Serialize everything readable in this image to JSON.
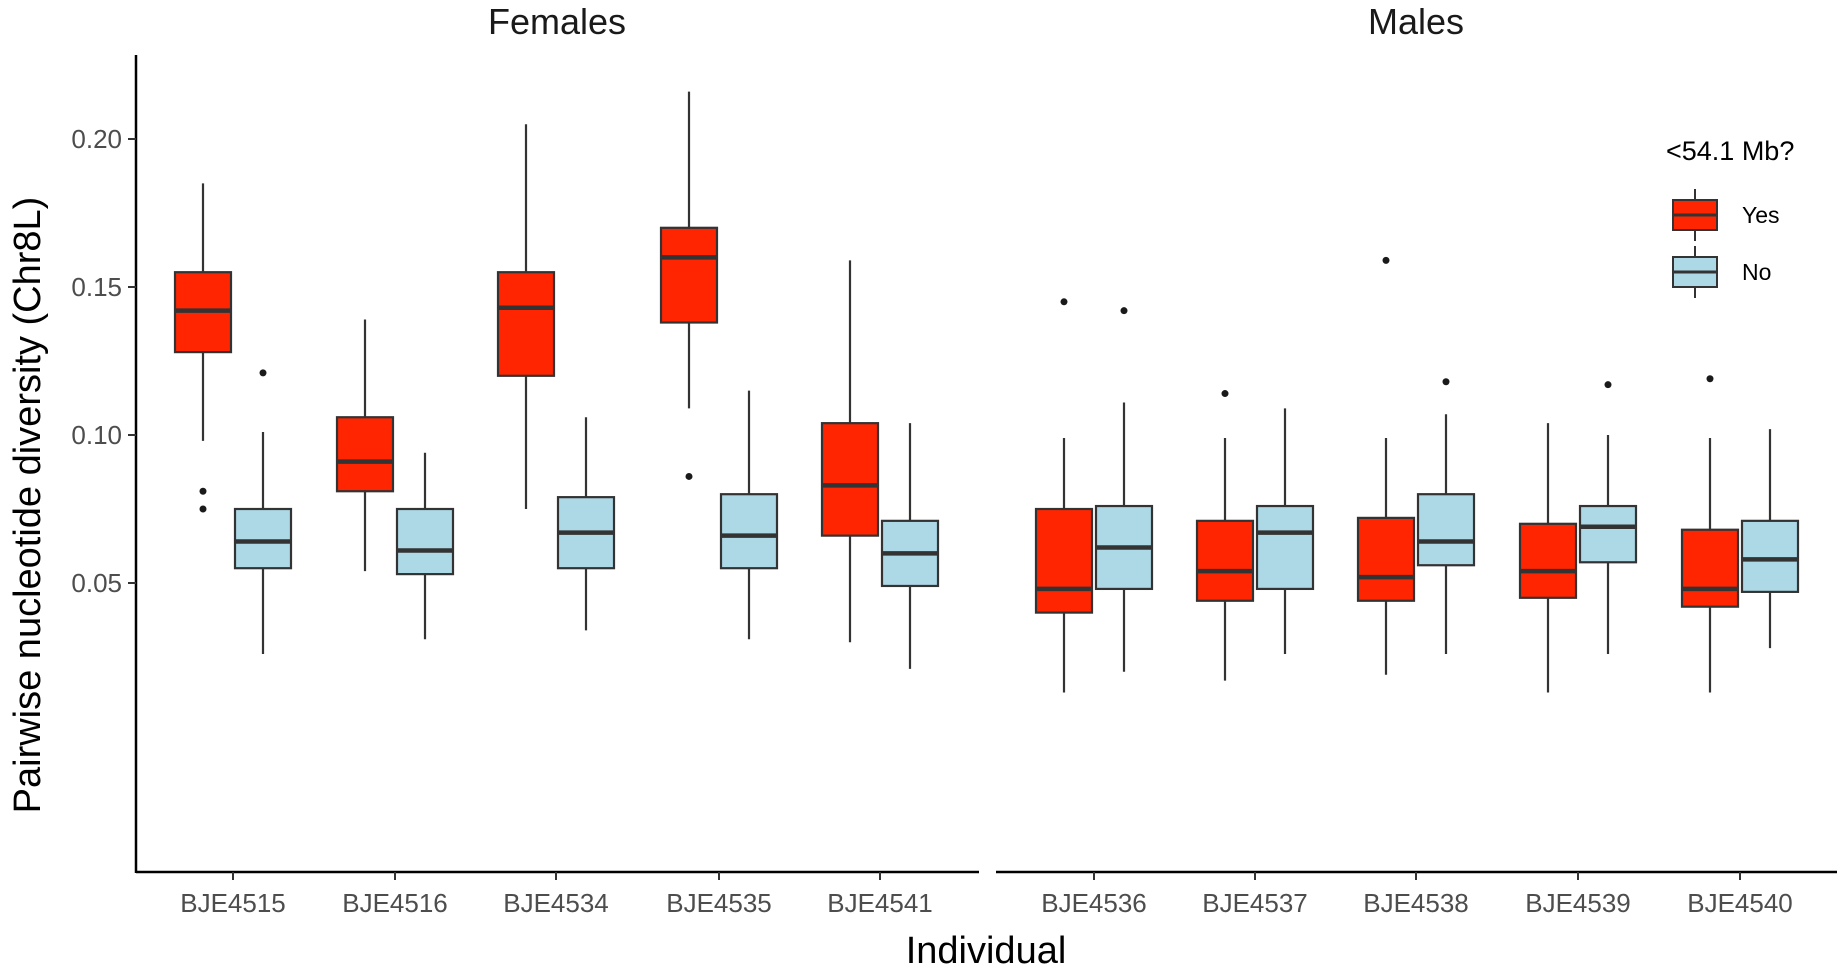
{
  "chart_data": {
    "type": "boxplot",
    "title": "",
    "xlabel": "Individual",
    "ylabel": "Pairwise nucleotide diversity (Chr8L)",
    "ylim": [
      0.0,
      0.225
    ],
    "yticks": [
      0.05,
      0.1,
      0.15,
      0.2
    ],
    "ytick_labels": [
      "0.05",
      "0.10",
      "0.15",
      "0.20"
    ],
    "grid": false,
    "legend": {
      "title": "<54.1 Mb?",
      "position": "top-right",
      "entries": [
        {
          "name": "Yes",
          "color": "#ff2500"
        },
        {
          "name": "No",
          "color": "#add8e6"
        }
      ]
    },
    "facets": [
      {
        "title": "Females",
        "categories": [
          "BJE4515",
          "BJE4516",
          "BJE4534",
          "BJE4535",
          "BJE4541"
        ],
        "series": [
          {
            "name": "Yes",
            "boxes": [
              {
                "min": 0.098,
                "q1": 0.128,
                "median": 0.142,
                "q3": 0.155,
                "max": 0.185,
                "outliers": [
                  0.081,
                  0.075
                ]
              },
              {
                "min": 0.054,
                "q1": 0.081,
                "median": 0.091,
                "q3": 0.106,
                "max": 0.139,
                "outliers": []
              },
              {
                "min": 0.075,
                "q1": 0.12,
                "median": 0.143,
                "q3": 0.155,
                "max": 0.205,
                "outliers": []
              },
              {
                "min": 0.109,
                "q1": 0.138,
                "median": 0.16,
                "q3": 0.17,
                "max": 0.216,
                "outliers": [
                  0.086
                ]
              },
              {
                "min": 0.03,
                "q1": 0.066,
                "median": 0.083,
                "q3": 0.104,
                "max": 0.159,
                "outliers": []
              }
            ]
          },
          {
            "name": "No",
            "boxes": [
              {
                "min": 0.026,
                "q1": 0.055,
                "median": 0.064,
                "q3": 0.075,
                "max": 0.101,
                "outliers": [
                  0.121
                ]
              },
              {
                "min": 0.031,
                "q1": 0.053,
                "median": 0.061,
                "q3": 0.075,
                "max": 0.094,
                "outliers": []
              },
              {
                "min": 0.034,
                "q1": 0.055,
                "median": 0.067,
                "q3": 0.079,
                "max": 0.106,
                "outliers": []
              },
              {
                "min": 0.031,
                "q1": 0.055,
                "median": 0.066,
                "q3": 0.08,
                "max": 0.115,
                "outliers": []
              },
              {
                "min": 0.021,
                "q1": 0.049,
                "median": 0.06,
                "q3": 0.071,
                "max": 0.104,
                "outliers": []
              }
            ]
          }
        ]
      },
      {
        "title": "Males",
        "categories": [
          "BJE4536",
          "BJE4537",
          "BJE4538",
          "BJE4539",
          "BJE4540"
        ],
        "series": [
          {
            "name": "Yes",
            "boxes": [
              {
                "min": 0.013,
                "q1": 0.04,
                "median": 0.048,
                "q3": 0.075,
                "max": 0.099,
                "outliers": [
                  0.145
                ]
              },
              {
                "min": 0.017,
                "q1": 0.044,
                "median": 0.054,
                "q3": 0.071,
                "max": 0.099,
                "outliers": [
                  0.114
                ]
              },
              {
                "min": 0.019,
                "q1": 0.044,
                "median": 0.052,
                "q3": 0.072,
                "max": 0.099,
                "outliers": [
                  0.159
                ]
              },
              {
                "min": 0.013,
                "q1": 0.045,
                "median": 0.054,
                "q3": 0.07,
                "max": 0.104,
                "outliers": []
              },
              {
                "min": 0.013,
                "q1": 0.042,
                "median": 0.048,
                "q3": 0.068,
                "max": 0.099,
                "outliers": [
                  0.119
                ]
              }
            ]
          },
          {
            "name": "No",
            "boxes": [
              {
                "min": 0.02,
                "q1": 0.048,
                "median": 0.062,
                "q3": 0.076,
                "max": 0.111,
                "outliers": [
                  0.142
                ]
              },
              {
                "min": 0.026,
                "q1": 0.048,
                "median": 0.067,
                "q3": 0.076,
                "max": 0.109,
                "outliers": []
              },
              {
                "min": 0.026,
                "q1": 0.056,
                "median": 0.064,
                "q3": 0.08,
                "max": 0.107,
                "outliers": [
                  0.118
                ]
              },
              {
                "min": 0.026,
                "q1": 0.057,
                "median": 0.069,
                "q3": 0.076,
                "max": 0.1,
                "outliers": [
                  0.117
                ]
              },
              {
                "min": 0.028,
                "q1": 0.047,
                "median": 0.058,
                "q3": 0.071,
                "max": 0.102,
                "outliers": []
              }
            ]
          }
        ]
      }
    ]
  }
}
